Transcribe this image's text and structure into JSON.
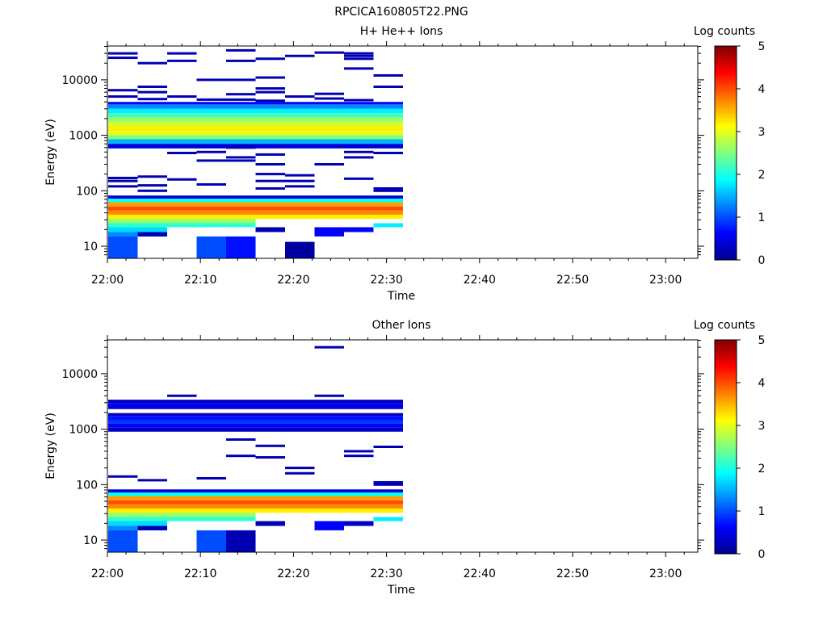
{
  "title": "RPCICA160805T22.PNG",
  "colorbar": {
    "label": "Log counts",
    "ticks": [
      "0",
      "1",
      "2",
      "3",
      "4",
      "5"
    ],
    "range": [
      0,
      5
    ]
  },
  "chart_data": [
    {
      "type": "heatmap",
      "title": "H+ He++ Ions",
      "xlabel": "Time",
      "ylabel": "Energy (eV)",
      "y_scale": "log",
      "x_ticks": [
        "22:00",
        "22:10",
        "22:20",
        "22:30",
        "22:40",
        "22:50",
        "23:00"
      ],
      "y_ticks": [
        "10",
        "100",
        "1000",
        "10000"
      ],
      "data_extent": {
        "time_start": "22:00",
        "time_end": "22:33"
      },
      "time_bins": [
        "22:00",
        "22:03",
        "22:06",
        "22:10",
        "22:13",
        "22:16",
        "22:20",
        "22:23",
        "22:26",
        "22:30"
      ],
      "lines": [
        {
          "c": 0,
          "e": 30000,
          "v": 0.2
        },
        {
          "c": 0,
          "e": 25000,
          "v": 0.2
        },
        {
          "c": 0,
          "e": 6500,
          "v": 0.2
        },
        {
          "c": 0,
          "e": 5000,
          "v": 0.2
        },
        {
          "c": 0,
          "e": 170,
          "v": 0.2
        },
        {
          "c": 0,
          "e": 150,
          "v": 0.2
        },
        {
          "c": 0,
          "e": 120,
          "v": 0.2
        },
        {
          "c": 1,
          "e": 20000,
          "v": 0.2
        },
        {
          "c": 1,
          "e": 7500,
          "v": 0.2
        },
        {
          "c": 1,
          "e": 6000,
          "v": 0.2
        },
        {
          "c": 1,
          "e": 4500,
          "v": 0.2
        },
        {
          "c": 1,
          "e": 180,
          "v": 0.2
        },
        {
          "c": 1,
          "e": 125,
          "v": 0.2
        },
        {
          "c": 1,
          "e": 100,
          "v": 0.2
        },
        {
          "c": 2,
          "e": 30000,
          "v": 0.2
        },
        {
          "c": 2,
          "e": 22000,
          "v": 0.2
        },
        {
          "c": 2,
          "e": 5000,
          "v": 0.2
        },
        {
          "c": 2,
          "e": 480,
          "v": 0.2
        },
        {
          "c": 2,
          "e": 160,
          "v": 0.2
        },
        {
          "c": 3,
          "e": 10000,
          "v": 0.2
        },
        {
          "c": 3,
          "e": 4400,
          "v": 0.2
        },
        {
          "c": 3,
          "e": 500,
          "v": 0.2
        },
        {
          "c": 3,
          "e": 350,
          "v": 0.2
        },
        {
          "c": 3,
          "e": 130,
          "v": 0.2
        },
        {
          "c": 4,
          "e": 34000,
          "v": 0.2
        },
        {
          "c": 4,
          "e": 22000,
          "v": 0.2
        },
        {
          "c": 4,
          "e": 10000,
          "v": 0.2
        },
        {
          "c": 4,
          "e": 5500,
          "v": 0.2
        },
        {
          "c": 4,
          "e": 4400,
          "v": 0.2
        },
        {
          "c": 4,
          "e": 600,
          "v": 0.2
        },
        {
          "c": 4,
          "e": 400,
          "v": 0.2
        },
        {
          "c": 4,
          "e": 350,
          "v": 0.2
        },
        {
          "c": 5,
          "e": 24000,
          "v": 0.2
        },
        {
          "c": 5,
          "e": 11000,
          "v": 0.2
        },
        {
          "c": 5,
          "e": 7000,
          "v": 0.2
        },
        {
          "c": 5,
          "e": 6000,
          "v": 0.2
        },
        {
          "c": 5,
          "e": 4200,
          "v": 0.2
        },
        {
          "c": 5,
          "e": 450,
          "v": 0.2
        },
        {
          "c": 5,
          "e": 300,
          "v": 0.2
        },
        {
          "c": 5,
          "e": 200,
          "v": 0.2
        },
        {
          "c": 5,
          "e": 150,
          "v": 0.2
        },
        {
          "c": 5,
          "e": 110,
          "v": 0.2
        },
        {
          "c": 6,
          "e": 27000,
          "v": 0.2
        },
        {
          "c": 6,
          "e": 5000,
          "v": 0.2
        },
        {
          "c": 6,
          "e": 190,
          "v": 0.2
        },
        {
          "c": 6,
          "e": 150,
          "v": 0.2
        },
        {
          "c": 6,
          "e": 120,
          "v": 0.2
        },
        {
          "c": 7,
          "e": 31000,
          "v": 0.2
        },
        {
          "c": 7,
          "e": 5600,
          "v": 0.2
        },
        {
          "c": 7,
          "e": 4600,
          "v": 0.2
        },
        {
          "c": 7,
          "e": 300,
          "v": 0.2
        },
        {
          "c": 8,
          "e": 30000,
          "v": 0.2
        },
        {
          "c": 8,
          "e": 27000,
          "v": 0.2
        },
        {
          "c": 8,
          "e": 24000,
          "v": 0.2
        },
        {
          "c": 8,
          "e": 16000,
          "v": 0.2
        },
        {
          "c": 8,
          "e": 4300,
          "v": 0.2
        },
        {
          "c": 8,
          "e": 500,
          "v": 0.2
        },
        {
          "c": 8,
          "e": 400,
          "v": 0.2
        },
        {
          "c": 8,
          "e": 165,
          "v": 0.2
        },
        {
          "c": 9,
          "e": 12000,
          "v": 0.2
        },
        {
          "c": 9,
          "e": 7500,
          "v": 0.2
        },
        {
          "c": 9,
          "e": 480,
          "v": 0.2
        },
        {
          "c": 9,
          "e": 110,
          "v": 0.2
        },
        {
          "c": 9,
          "e": 100,
          "v": 0.2
        }
      ],
      "bands": [
        {
          "c0": 0,
          "c1": 9,
          "e0": 3600,
          "e1": 4000,
          "v": 0.6
        },
        {
          "c0": 0,
          "c1": 9,
          "e0": 3000,
          "e1": 3600,
          "v": 1.3
        },
        {
          "c0": 0,
          "c1": 9,
          "e0": 2500,
          "e1": 3000,
          "v": 1.8
        },
        {
          "c0": 0,
          "c1": 9,
          "e0": 2100,
          "e1": 2500,
          "v": 2.2
        },
        {
          "c0": 0,
          "c1": 9,
          "e0": 1750,
          "e1": 2100,
          "v": 2.6
        },
        {
          "c0": 0,
          "c1": 9,
          "e0": 1450,
          "e1": 1750,
          "v": 2.9
        },
        {
          "c0": 0,
          "c1": 9,
          "e0": 1200,
          "e1": 1450,
          "v": 3.2
        },
        {
          "c0": 0,
          "c1": 9,
          "e0": 1000,
          "e1": 1200,
          "v": 3.0
        },
        {
          "c0": 0,
          "c1": 9,
          "e0": 850,
          "e1": 1000,
          "v": 2.5
        },
        {
          "c0": 0,
          "c1": 9,
          "e0": 700,
          "e1": 850,
          "v": 1.5
        },
        {
          "c0": 0,
          "c1": 9,
          "e0": 580,
          "e1": 700,
          "v": 0.4
        },
        {
          "c0": 0,
          "c1": 9,
          "e0": 72,
          "e1": 82,
          "v": 0.4
        },
        {
          "c0": 0,
          "c1": 9,
          "e0": 62,
          "e1": 72,
          "v": 1.9
        },
        {
          "c0": 0,
          "c1": 9,
          "e0": 52,
          "e1": 62,
          "v": 3.6
        },
        {
          "c0": 0,
          "c1": 9,
          "e0": 44,
          "e1": 52,
          "v": 4.0
        },
        {
          "c0": 0,
          "c1": 9,
          "e0": 37,
          "e1": 44,
          "v": 3.7
        },
        {
          "c0": 0,
          "c1": 9,
          "e0": 31,
          "e1": 37,
          "v": 3.2
        },
        {
          "c0": 0,
          "c1": 4,
          "e0": 26,
          "e1": 31,
          "v": 2.6
        },
        {
          "c0": 0,
          "c1": 4,
          "e0": 22,
          "e1": 26,
          "v": 2.1
        },
        {
          "c0": 0,
          "c1": 1,
          "e0": 18,
          "e1": 22,
          "v": 1.7
        },
        {
          "c0": 0,
          "c1": 1,
          "e0": 15,
          "e1": 18,
          "v": 1.3
        },
        {
          "c0": 0,
          "c1": 0,
          "e0": 6,
          "e1": 15,
          "v": 1.0
        },
        {
          "c0": 1,
          "c1": 1,
          "e0": 15,
          "e1": 18,
          "v": 0.2
        },
        {
          "c0": 3,
          "c1": 3,
          "e0": 6,
          "e1": 15,
          "v": 1.0
        },
        {
          "c0": 4,
          "c1": 4,
          "e0": 6,
          "e1": 15,
          "v": 0.7
        },
        {
          "c0": 5,
          "c1": 5,
          "e0": 18,
          "e1": 22,
          "v": 0.2
        },
        {
          "c0": 6,
          "c1": 6,
          "e0": 6,
          "e1": 12,
          "v": 0.1
        },
        {
          "c0": 7,
          "c1": 7,
          "e0": 15,
          "e1": 22,
          "v": 0.6
        },
        {
          "c0": 8,
          "c1": 8,
          "e0": 18,
          "e1": 22,
          "v": 0.6
        },
        {
          "c0": 9,
          "c1": 9,
          "e0": 22,
          "e1": 26,
          "v": 1.8
        }
      ]
    },
    {
      "type": "heatmap",
      "title": "Other Ions",
      "xlabel": "Time",
      "ylabel": "Energy (eV)",
      "y_scale": "log",
      "x_ticks": [
        "22:00",
        "22:10",
        "22:20",
        "22:30",
        "22:40",
        "22:50",
        "23:00"
      ],
      "y_ticks": [
        "10",
        "100",
        "1000",
        "10000"
      ],
      "data_extent": {
        "time_start": "22:00",
        "time_end": "22:33"
      },
      "time_bins": [
        "22:00",
        "22:03",
        "22:06",
        "22:10",
        "22:13",
        "22:16",
        "22:20",
        "22:23",
        "22:26",
        "22:30"
      ],
      "lines": [
        {
          "c": 0,
          "e": 140,
          "v": 0.2
        },
        {
          "c": 1,
          "e": 120,
          "v": 0.2
        },
        {
          "c": 2,
          "e": 4000,
          "v": 0.2
        },
        {
          "c": 3,
          "e": 130,
          "v": 0.2
        },
        {
          "c": 4,
          "e": 650,
          "v": 0.2
        },
        {
          "c": 4,
          "e": 330,
          "v": 0.2
        },
        {
          "c": 5,
          "e": 500,
          "v": 0.2
        },
        {
          "c": 5,
          "e": 310,
          "v": 0.2
        },
        {
          "c": 6,
          "e": 200,
          "v": 0.2
        },
        {
          "c": 6,
          "e": 160,
          "v": 0.2
        },
        {
          "c": 7,
          "e": 30000,
          "v": 0.2
        },
        {
          "c": 7,
          "e": 4000,
          "v": 0.2
        },
        {
          "c": 8,
          "e": 400,
          "v": 0.2
        },
        {
          "c": 8,
          "e": 330,
          "v": 0.2
        },
        {
          "c": 9,
          "e": 480,
          "v": 0.2
        },
        {
          "c": 9,
          "e": 110,
          "v": 0.2
        },
        {
          "c": 9,
          "e": 100,
          "v": 0.2
        }
      ],
      "bands": [
        {
          "c0": 0,
          "c1": 9,
          "e0": 2900,
          "e1": 3400,
          "v": 0.3
        },
        {
          "c0": 0,
          "c1": 9,
          "e0": 2300,
          "e1": 2900,
          "v": 0.5
        },
        {
          "c0": 0,
          "c1": 9,
          "e0": 1700,
          "e1": 1950,
          "v": 0.3
        },
        {
          "c0": 0,
          "c1": 9,
          "e0": 1450,
          "e1": 1700,
          "v": 0.7
        },
        {
          "c0": 0,
          "c1": 9,
          "e0": 1250,
          "e1": 1450,
          "v": 0.9
        },
        {
          "c0": 0,
          "c1": 9,
          "e0": 1080,
          "e1": 1250,
          "v": 0.6
        },
        {
          "c0": 0,
          "c1": 9,
          "e0": 900,
          "e1": 1080,
          "v": 0.3
        },
        {
          "c0": 0,
          "c1": 9,
          "e0": 72,
          "e1": 82,
          "v": 0.4
        },
        {
          "c0": 0,
          "c1": 9,
          "e0": 62,
          "e1": 72,
          "v": 1.9
        },
        {
          "c0": 0,
          "c1": 9,
          "e0": 52,
          "e1": 62,
          "v": 3.6
        },
        {
          "c0": 0,
          "c1": 9,
          "e0": 44,
          "e1": 52,
          "v": 4.0
        },
        {
          "c0": 0,
          "c1": 9,
          "e0": 37,
          "e1": 44,
          "v": 3.7
        },
        {
          "c0": 0,
          "c1": 9,
          "e0": 31,
          "e1": 37,
          "v": 3.2
        },
        {
          "c0": 0,
          "c1": 4,
          "e0": 26,
          "e1": 31,
          "v": 2.6
        },
        {
          "c0": 0,
          "c1": 4,
          "e0": 22,
          "e1": 26,
          "v": 2.1
        },
        {
          "c0": 0,
          "c1": 1,
          "e0": 18,
          "e1": 22,
          "v": 1.7
        },
        {
          "c0": 0,
          "c1": 1,
          "e0": 15,
          "e1": 18,
          "v": 1.3
        },
        {
          "c0": 0,
          "c1": 0,
          "e0": 6,
          "e1": 15,
          "v": 1.0
        },
        {
          "c0": 1,
          "c1": 1,
          "e0": 15,
          "e1": 18,
          "v": 0.2
        },
        {
          "c0": 3,
          "c1": 3,
          "e0": 6,
          "e1": 15,
          "v": 1.0
        },
        {
          "c0": 4,
          "c1": 4,
          "e0": 6,
          "e1": 15,
          "v": 0.2
        },
        {
          "c0": 5,
          "c1": 5,
          "e0": 18,
          "e1": 22,
          "v": 0.2
        },
        {
          "c0": 7,
          "c1": 7,
          "e0": 15,
          "e1": 22,
          "v": 0.6
        },
        {
          "c0": 8,
          "c1": 8,
          "e0": 18,
          "e1": 22,
          "v": 0.3
        },
        {
          "c0": 9,
          "c1": 9,
          "e0": 22,
          "e1": 26,
          "v": 1.8
        }
      ]
    }
  ]
}
